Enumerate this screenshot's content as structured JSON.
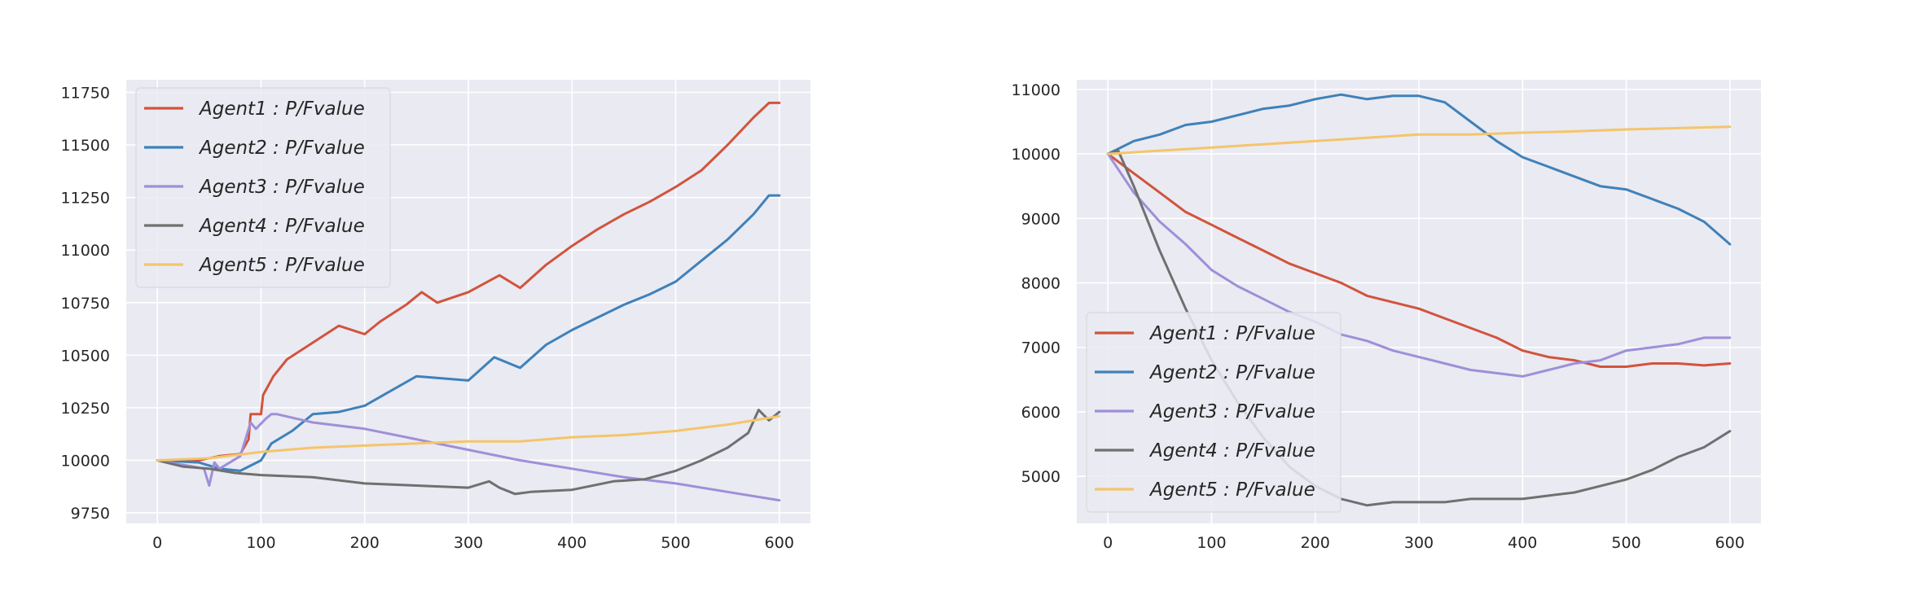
{
  "chart_data": [
    {
      "type": "line",
      "title": "",
      "xlabel": "",
      "ylabel": "",
      "xlim": [
        -30,
        630
      ],
      "ylim": [
        9700,
        11810
      ],
      "xticks": [
        0,
        100,
        200,
        300,
        400,
        500,
        600
      ],
      "xtick_labels": [
        "0",
        "100",
        "200",
        "300",
        "400",
        "500",
        "600"
      ],
      "yticks": [
        9750,
        10000,
        10250,
        10500,
        10750,
        11000,
        11250,
        11500,
        11750
      ],
      "ytick_labels": [
        "9750",
        "10000",
        "10250",
        "10500",
        "10750",
        "11000",
        "11250",
        "11500",
        "11750"
      ],
      "grid": true,
      "legend_position": "upper-left",
      "series": [
        {
          "name": "Agent1 : P/Fvalue",
          "color": "#d1543c",
          "x": [
            0,
            40,
            60,
            80,
            88,
            90,
            100,
            102,
            112,
            125,
            150,
            175,
            200,
            215,
            240,
            255,
            270,
            300,
            330,
            350,
            375,
            400,
            425,
            450,
            475,
            500,
            525,
            550,
            575,
            590,
            600
          ],
          "y": [
            10000,
            10000,
            10020,
            10030,
            10100,
            10220,
            10220,
            10310,
            10400,
            10480,
            10560,
            10640,
            10600,
            10660,
            10740,
            10800,
            10750,
            10800,
            10880,
            10820,
            10930,
            11020,
            11100,
            11170,
            11230,
            11300,
            11380,
            11500,
            11630,
            11700,
            11700
          ]
        },
        {
          "name": "Agent2 : P/Fvalue",
          "color": "#3f81b9",
          "x": [
            0,
            40,
            60,
            80,
            100,
            110,
            130,
            150,
            175,
            200,
            225,
            250,
            300,
            325,
            350,
            375,
            400,
            425,
            450,
            475,
            500,
            525,
            550,
            575,
            590,
            600
          ],
          "y": [
            10000,
            9990,
            9960,
            9950,
            10000,
            10080,
            10140,
            10220,
            10230,
            10260,
            10330,
            10400,
            10380,
            10490,
            10440,
            10550,
            10620,
            10680,
            10740,
            10790,
            10850,
            10950,
            11050,
            11170,
            11260,
            11260
          ]
        },
        {
          "name": "Agent3 : P/Fvalue",
          "color": "#9f8fd8",
          "x": [
            0,
            35,
            45,
            50,
            55,
            60,
            80,
            90,
            95,
            105,
            110,
            115,
            150,
            200,
            250,
            300,
            350,
            400,
            450,
            500,
            550,
            600
          ],
          "y": [
            10000,
            9970,
            9960,
            9880,
            9990,
            9960,
            10020,
            10180,
            10150,
            10200,
            10220,
            10220,
            10180,
            10150,
            10100,
            10050,
            10000,
            9960,
            9920,
            9890,
            9850,
            9810
          ]
        },
        {
          "name": "Agent4 : P/Fvalue",
          "color": "#707070",
          "x": [
            0,
            25,
            50,
            75,
            100,
            150,
            200,
            250,
            300,
            320,
            330,
            345,
            360,
            400,
            440,
            470,
            500,
            525,
            550,
            570,
            580,
            590,
            600
          ],
          "y": [
            10000,
            9970,
            9960,
            9940,
            9930,
            9920,
            9890,
            9880,
            9870,
            9900,
            9870,
            9840,
            9850,
            9860,
            9900,
            9910,
            9950,
            10000,
            10060,
            10130,
            10240,
            10190,
            10230
          ]
        },
        {
          "name": "Agent5 : P/Fvalue",
          "color": "#f4c56a",
          "x": [
            0,
            50,
            100,
            150,
            200,
            250,
            300,
            350,
            400,
            450,
            500,
            550,
            600
          ],
          "y": [
            10000,
            10010,
            10040,
            10060,
            10070,
            10080,
            10090,
            10090,
            10110,
            10120,
            10140,
            10170,
            10210
          ]
        }
      ]
    },
    {
      "type": "line",
      "title": "",
      "xlabel": "",
      "ylabel": "",
      "xlim": [
        -30,
        630
      ],
      "ylim": [
        4270,
        11150
      ],
      "xticks": [
        0,
        100,
        200,
        300,
        400,
        500,
        600
      ],
      "xtick_labels": [
        "0",
        "100",
        "200",
        "300",
        "400",
        "500",
        "600"
      ],
      "yticks": [
        5000,
        6000,
        7000,
        8000,
        9000,
        10000,
        11000
      ],
      "ytick_labels": [
        "5000",
        "6000",
        "7000",
        "8000",
        "9000",
        "10000",
        "11000"
      ],
      "grid": true,
      "legend_position": "lower-left",
      "series": [
        {
          "name": "Agent1 : P/Fvalue",
          "color": "#d1543c",
          "x": [
            0,
            25,
            50,
            75,
            100,
            125,
            150,
            175,
            200,
            225,
            250,
            275,
            300,
            325,
            350,
            375,
            400,
            425,
            450,
            475,
            500,
            525,
            550,
            575,
            600
          ],
          "y": [
            10000,
            9700,
            9400,
            9100,
            8900,
            8700,
            8500,
            8300,
            8150,
            8000,
            7800,
            7700,
            7600,
            7450,
            7300,
            7150,
            6950,
            6850,
            6800,
            6700,
            6700,
            6750,
            6750,
            6720,
            6750
          ]
        },
        {
          "name": "Agent2 : P/Fvalue",
          "color": "#3f81b9",
          "x": [
            0,
            25,
            50,
            75,
            100,
            125,
            150,
            175,
            200,
            225,
            250,
            275,
            300,
            325,
            350,
            375,
            400,
            425,
            450,
            475,
            500,
            525,
            550,
            575,
            600
          ],
          "y": [
            10000,
            10200,
            10300,
            10450,
            10500,
            10600,
            10700,
            10750,
            10850,
            10920,
            10850,
            10900,
            10900,
            10800,
            10500,
            10200,
            9950,
            9800,
            9650,
            9500,
            9450,
            9300,
            9150,
            8950,
            8600
          ]
        },
        {
          "name": "Agent3 : P/Fvalue",
          "color": "#9f8fd8",
          "x": [
            0,
            25,
            50,
            75,
            100,
            125,
            150,
            175,
            200,
            225,
            250,
            275,
            300,
            325,
            350,
            375,
            400,
            425,
            450,
            475,
            500,
            525,
            550,
            575,
            600
          ],
          "y": [
            10000,
            9400,
            8950,
            8600,
            8200,
            7950,
            7750,
            7550,
            7400,
            7200,
            7100,
            6950,
            6850,
            6750,
            6650,
            6600,
            6550,
            6650,
            6750,
            6800,
            6950,
            7000,
            7050,
            7150,
            7150
          ]
        },
        {
          "name": "Agent4 : P/Fvalue",
          "color": "#707070",
          "x": [
            0,
            10,
            25,
            50,
            75,
            100,
            125,
            150,
            175,
            200,
            225,
            250,
            275,
            300,
            325,
            350,
            375,
            400,
            425,
            450,
            475,
            500,
            525,
            550,
            575,
            600
          ],
          "y": [
            10000,
            10050,
            9500,
            8500,
            7600,
            6800,
            6150,
            5600,
            5150,
            4850,
            4650,
            4550,
            4600,
            4600,
            4600,
            4650,
            4650,
            4650,
            4700,
            4750,
            4850,
            4950,
            5100,
            5300,
            5450,
            5700
          ]
        },
        {
          "name": "Agent5 : P/Fvalue",
          "color": "#f4c56a",
          "x": [
            0,
            50,
            100,
            150,
            200,
            250,
            300,
            350,
            400,
            450,
            500,
            550,
            600
          ],
          "y": [
            10000,
            10050,
            10100,
            10150,
            10200,
            10250,
            10300,
            10300,
            10330,
            10350,
            10380,
            10400,
            10420
          ]
        }
      ]
    }
  ]
}
